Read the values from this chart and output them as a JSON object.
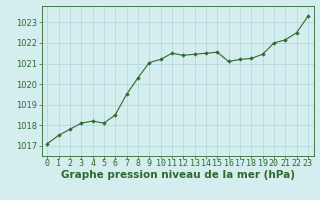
{
  "x": [
    0,
    1,
    2,
    3,
    4,
    5,
    6,
    7,
    8,
    9,
    10,
    11,
    12,
    13,
    14,
    15,
    16,
    17,
    18,
    19,
    20,
    21,
    22,
    23
  ],
  "y": [
    1017.1,
    1017.5,
    1017.8,
    1018.1,
    1018.2,
    1018.1,
    1018.5,
    1019.5,
    1020.3,
    1021.05,
    1021.2,
    1021.5,
    1021.4,
    1021.45,
    1021.5,
    1021.55,
    1021.1,
    1021.2,
    1021.25,
    1021.45,
    1022.0,
    1022.15,
    1022.5,
    1023.3
  ],
  "ylim": [
    1016.5,
    1023.8
  ],
  "xlim": [
    -0.5,
    23.5
  ],
  "yticks": [
    1017,
    1018,
    1019,
    1020,
    1021,
    1022,
    1023
  ],
  "xticks": [
    0,
    1,
    2,
    3,
    4,
    5,
    6,
    7,
    8,
    9,
    10,
    11,
    12,
    13,
    14,
    15,
    16,
    17,
    18,
    19,
    20,
    21,
    22,
    23
  ],
  "line_color": "#2d6a2d",
  "marker_color": "#2d6a2d",
  "bg_color": "#d4eef0",
  "grid_color": "#b0d4d8",
  "title": "Graphe pression niveau de la mer (hPa)",
  "title_color": "#2d6a2d",
  "tick_color": "#2d6a2d",
  "label_fontsize": 6.0,
  "title_fontsize": 7.5
}
